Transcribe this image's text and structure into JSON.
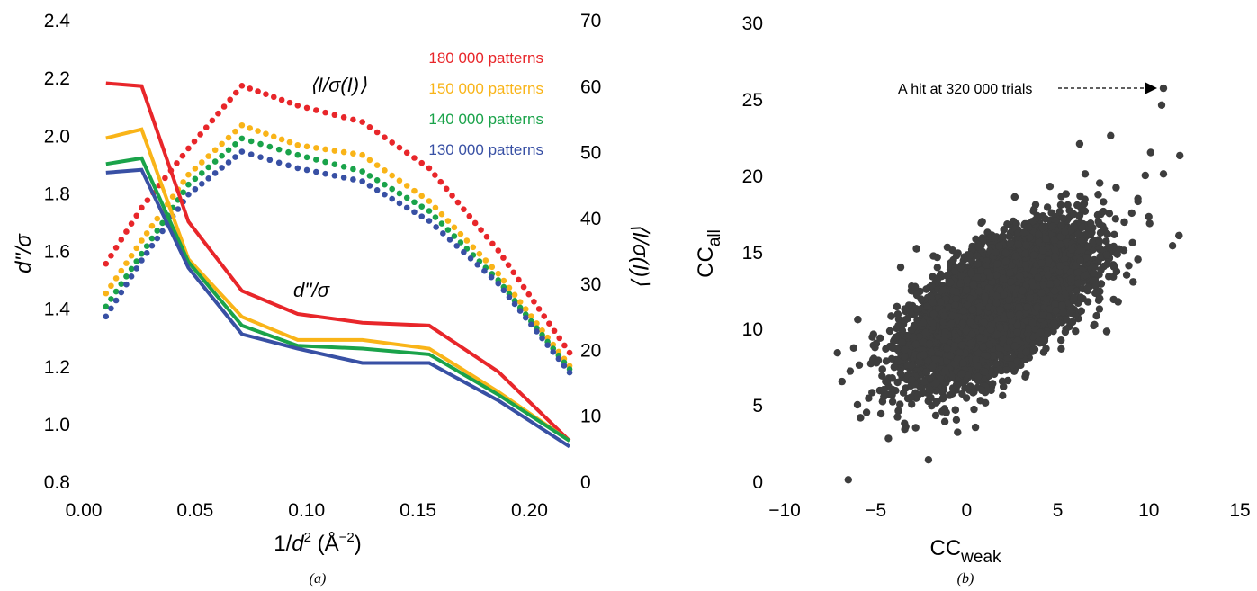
{
  "figure": {
    "captions": [
      "(a)",
      "(b)"
    ]
  },
  "chart_data": [
    {
      "type": "line",
      "x": [
        0.01,
        0.026,
        0.047,
        0.071,
        0.096,
        0.125,
        0.155,
        0.186,
        0.218
      ],
      "xlabel": "1/d² (Å⁻²)",
      "xlabel_parts": {
        "base": "1/",
        "var": "d",
        "sup": "2",
        "mid": " (Å",
        "sup2": "−2",
        "end": ")"
      },
      "ylabel_left": "d''/σ",
      "ylabel_right": "⟨I/σ(I)⟩",
      "xlim": [
        0.0,
        0.22
      ],
      "ylim_left": [
        0.8,
        2.4
      ],
      "ylim_right": [
        0,
        70
      ],
      "xticks": [
        "0.00",
        "0.05",
        "0.10",
        "0.15",
        "0.20"
      ],
      "yticks_left": [
        "0.8",
        "1.0",
        "1.2",
        "1.4",
        "1.6",
        "1.8",
        "2.0",
        "2.2",
        "2.4"
      ],
      "yticks_right": [
        "0",
        "10",
        "20",
        "30",
        "40",
        "50",
        "60",
        "70"
      ],
      "curve_labels": {
        "d_sigma": "d''/σ",
        "i_sigma": "⟨I/σ(I)⟩"
      },
      "legend_position": "top-right",
      "series": [
        {
          "name": "180 000 patterns",
          "color": "#e8262a",
          "d_sigma": [
            2.18,
            2.17,
            1.7,
            1.46,
            1.38,
            1.35,
            1.34,
            1.18,
            0.94
          ],
          "i_sigma": [
            33.0,
            41.5,
            50.5,
            60.0,
            57.0,
            54.5,
            47.5,
            35.0,
            19.5
          ]
        },
        {
          "name": "150 000 patterns",
          "color": "#f9b418",
          "d_sigma": [
            1.99,
            2.02,
            1.57,
            1.37,
            1.29,
            1.29,
            1.26,
            1.11,
            0.94
          ],
          "i_sigma": [
            28.5,
            36.5,
            46.5,
            54.0,
            51.0,
            49.5,
            42.5,
            31.5,
            17.5
          ]
        },
        {
          "name": "140 000 patterns",
          "color": "#1aa34a",
          "d_sigma": [
            1.9,
            1.92,
            1.56,
            1.34,
            1.27,
            1.26,
            1.24,
            1.1,
            0.94
          ],
          "i_sigma": [
            26.5,
            34.5,
            45.0,
            52.0,
            49.5,
            47.0,
            41.0,
            30.5,
            17.0
          ]
        },
        {
          "name": "130 000 patterns",
          "color": "#3850a4",
          "d_sigma": [
            1.87,
            1.88,
            1.54,
            1.31,
            1.26,
            1.21,
            1.21,
            1.08,
            0.92
          ],
          "i_sigma": [
            25.0,
            33.5,
            43.5,
            50.0,
            47.5,
            45.5,
            39.5,
            30.0,
            16.5
          ]
        }
      ]
    },
    {
      "type": "scatter",
      "xlabel": "CCweak",
      "xlabel_parts": {
        "base": "CC",
        "sub": "weak"
      },
      "ylabel": "CCall",
      "ylabel_parts": {
        "base": "CC",
        "sub": "all"
      },
      "xlim": [
        -10,
        15
      ],
      "ylim": [
        0,
        30
      ],
      "xticks": [
        "−10",
        "−5",
        "0",
        "5",
        "10",
        "15"
      ],
      "yticks": [
        "0",
        "5",
        "10",
        "15",
        "20",
        "25",
        "30"
      ],
      "point_color": "#3d3d3d",
      "annotation": {
        "text": "A hit at 320 000 trials",
        "target_x": 10.8,
        "target_y": 25.7
      },
      "cloud": {
        "description_free": true,
        "center": [
          1.8,
          11.6
        ],
        "sd": [
          2.3,
          2.3
        ],
        "corr": 0.62,
        "count": 9000
      },
      "outliers": [
        [
          10.8,
          25.7
        ],
        [
          10.7,
          24.6
        ],
        [
          10.8,
          20.1
        ],
        [
          11.7,
          21.3
        ],
        [
          9.8,
          20.0
        ],
        [
          10.1,
          21.5
        ],
        [
          7.9,
          22.6
        ],
        [
          11.3,
          15.4
        ],
        [
          -6.5,
          0.1
        ],
        [
          -7.1,
          8.4
        ],
        [
          -4.3,
          2.8
        ],
        [
          -2.1,
          1.4
        ],
        [
          -3.4,
          3.4
        ],
        [
          -6.4,
          7.2
        ],
        [
          -6.0,
          5.0
        ],
        [
          -5.5,
          4.5
        ],
        [
          -1.2,
          3.9
        ],
        [
          -2.8,
          3.5
        ],
        [
          -0.5,
          3.2
        ],
        [
          -3.8,
          4.2
        ],
        [
          -5.9,
          7.6
        ],
        [
          -5.2,
          5.8
        ],
        [
          8.2,
          19.2
        ],
        [
          9.4,
          18.3
        ],
        [
          8.9,
          14.1
        ],
        [
          -1.7,
          4.3
        ],
        [
          0.4,
          4.7
        ],
        [
          6.5,
          20.1
        ],
        [
          7.3,
          19.5
        ],
        [
          9.1,
          15.6
        ]
      ]
    }
  ]
}
